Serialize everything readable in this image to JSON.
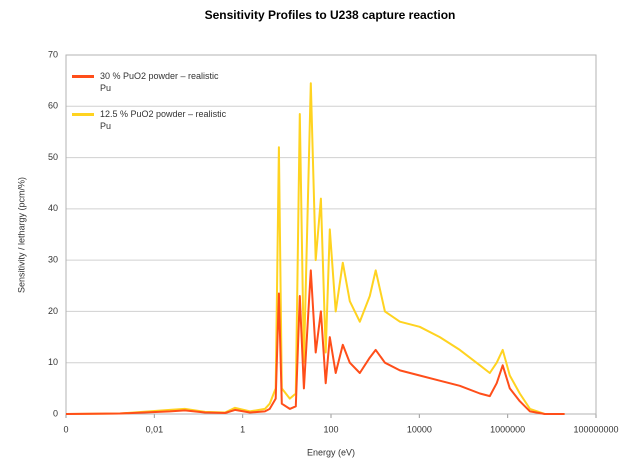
{
  "chart_data": {
    "type": "line",
    "title": "Sensitivity Profiles to U238 capture reaction",
    "x_label": "Energy (eV)",
    "y_label": "Sensitivity / lethargy (pcm/%)",
    "xscale": "log",
    "grid": true,
    "legend": "upper left",
    "x": [
      0.0001,
      0.00166,
      0.0225,
      0.049,
      0.14,
      0.4,
      0.67,
      1.46,
      3.18,
      4.1,
      5.6,
      6.6,
      7.7,
      11.7,
      16,
      19.7,
      24.3,
      34.9,
      45,
      59,
      76,
      94,
      128,
      185,
      267,
      448,
      755,
      1030,
      1660,
      3630,
      10200,
      29000,
      82500,
      235000,
      393000,
      565000,
      773000,
      1120000,
      1880000,
      3200000,
      6900000,
      19500000
    ],
    "series": [
      {
        "name": "30 % PuO2 powder – realistic Pu",
        "color": "#ff4e1a",
        "values": [
          0,
          0.1,
          0.5,
          0.7,
          0.3,
          0.2,
          0.8,
          0.3,
          0.5,
          1,
          3,
          23.5,
          2,
          1,
          1.5,
          23,
          5,
          28,
          12,
          20,
          6,
          15,
          8,
          13.5,
          10,
          8,
          11,
          12.5,
          10,
          8.5,
          7.5,
          6.5,
          5.5,
          4,
          3.5,
          6,
          9.5,
          5,
          2.5,
          0.5,
          0,
          0
        ]
      },
      {
        "name": "12.5 % PuO2 powder – realistic Pu",
        "color": "#ffd320",
        "values": [
          0,
          0.1,
          0.8,
          1,
          0.4,
          0.3,
          1.2,
          0.5,
          1,
          2,
          5,
          52,
          5,
          3,
          4,
          58.5,
          10,
          64.5,
          30,
          42,
          12,
          36,
          20,
          29.5,
          22,
          18,
          23,
          28,
          20,
          18,
          17,
          15,
          12.5,
          9.5,
          8,
          10,
          12.5,
          7.5,
          4,
          1,
          0,
          0
        ]
      }
    ],
    "xlim": [
      0.0001,
      100000000
    ],
    "xticks": [
      {
        "value": 0.0001,
        "label": "0"
      },
      {
        "value": 0.01,
        "label": "0,01"
      },
      1,
      100,
      10000,
      1000000,
      100000000
    ],
    "ylim": [
      0,
      70
    ],
    "yticks": [
      0,
      10,
      20,
      30,
      40,
      50,
      60,
      70
    ]
  }
}
